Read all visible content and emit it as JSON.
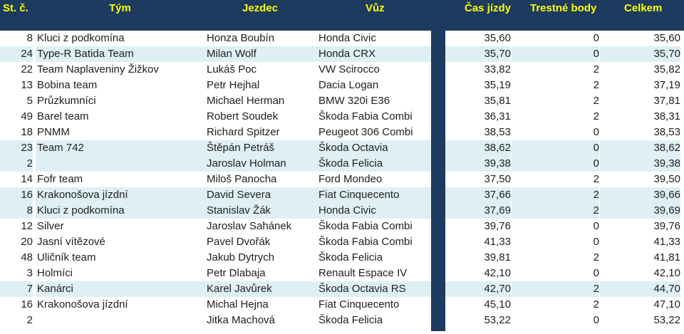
{
  "header": {
    "st": "St. č.",
    "team": "Tým",
    "driver": "Jezdec",
    "car": "Vůz",
    "time": "Čas jízdy",
    "penalty": "Trestné body",
    "total": "Celkem"
  },
  "rows": [
    {
      "num": "8",
      "team": "Kluci z podkomína",
      "driver": "Honza Boubín",
      "car": "Honda Civic",
      "time": "35,60",
      "penalty": "0",
      "total": "35,60"
    },
    {
      "num": "24",
      "team": "Type-R Batida Team",
      "driver": "Milan Wolf",
      "car": "Honda CRX",
      "time": "35,70",
      "penalty": "0",
      "total": "35,70"
    },
    {
      "num": "22",
      "team": "Team Naplaveniny Žižkov",
      "driver": "Lukáš Poc",
      "car": "VW Scirocco",
      "time": "33,82",
      "penalty": "2",
      "total": "35,82"
    },
    {
      "num": "13",
      "team": "Bobina team",
      "driver": "Petr Hejhal",
      "car": "Dacia Logan",
      "time": "35,19",
      "penalty": "2",
      "total": "37,19"
    },
    {
      "num": "5",
      "team": "Průzkumníci",
      "driver": "Michael Herman",
      "car": "BMW 320i E36",
      "time": "35,81",
      "penalty": "2",
      "total": "37,81"
    },
    {
      "num": "49",
      "team": "Barel team",
      "driver": "Robert Soudek",
      "car": "Škoda Fabia Combi",
      "time": "36,31",
      "penalty": "2",
      "total": "38,31"
    },
    {
      "num": "18",
      "team": "PNMM",
      "driver": "Richard Spitzer",
      "car": "Peugeot 306 Combi",
      "time": "38,53",
      "penalty": "0",
      "total": "38,53"
    },
    {
      "num": "23",
      "team": "Team 742",
      "driver": "Štěpán Petráš",
      "car": "Škoda Octavia",
      "time": "38,62",
      "penalty": "0",
      "total": "38,62"
    },
    {
      "num": "2",
      "team": "",
      "driver": "Jaroslav Holman",
      "car": "Škoda Felicia",
      "time": "39,38",
      "penalty": "0",
      "total": "39,38"
    },
    {
      "num": "14",
      "team": "Fofr team",
      "driver": "Miloš Panocha",
      "car": "Ford Mondeo",
      "time": "37,50",
      "penalty": "2",
      "total": "39,50"
    },
    {
      "num": "16",
      "team": "Krakonošova jízdní",
      "driver": "David Severa",
      "car": "Fiat Cinquecento",
      "time": "37,66",
      "penalty": "2",
      "total": "39,66"
    },
    {
      "num": "8",
      "team": "Kluci z podkomína",
      "driver": "Stanislav Žák",
      "car": "Honda Civic",
      "time": "37,69",
      "penalty": "2",
      "total": "39,69"
    },
    {
      "num": "12",
      "team": "Silver",
      "driver": "Jaroslav Sahánek",
      "car": "Škoda Fabia Combi",
      "time": "39,76",
      "penalty": "0",
      "total": "39,76"
    },
    {
      "num": "20",
      "team": "Jasní vítězové",
      "driver": "Pavel Dvořák",
      "car": "Škoda Fabia Combi",
      "time": "41,33",
      "penalty": "0",
      "total": "41,33"
    },
    {
      "num": "48",
      "team": "Uličník team",
      "driver": "Jakub Dytrych",
      "car": "Škoda Felicia",
      "time": "39,81",
      "penalty": "2",
      "total": "41,81"
    },
    {
      "num": "3",
      "team": "Holmíci",
      "driver": "Petr Dlabaja",
      "car": "Renault Espace IV",
      "time": "42,10",
      "penalty": "0",
      "total": "42,10"
    },
    {
      "num": "7",
      "team": "Kanárci",
      "driver": "Karel Javůrek",
      "car": "Škoda Octavia RS",
      "time": "42,70",
      "penalty": "2",
      "total": "44,70"
    },
    {
      "num": "16",
      "team": "Krakonošova jízdní",
      "driver": "Michal Hejna",
      "car": "Fiat Cinquecento",
      "time": "45,10",
      "penalty": "2",
      "total": "47,10"
    },
    {
      "num": "2",
      "team": "",
      "driver": "Jitka Machová",
      "car": "Škoda Felicia",
      "time": "53,22",
      "penalty": "0",
      "total": "53,22"
    }
  ],
  "colors": {
    "header_bg": "#1d3a5f",
    "header_text": "#ffff00",
    "row_shade": "#dff0f4"
  }
}
